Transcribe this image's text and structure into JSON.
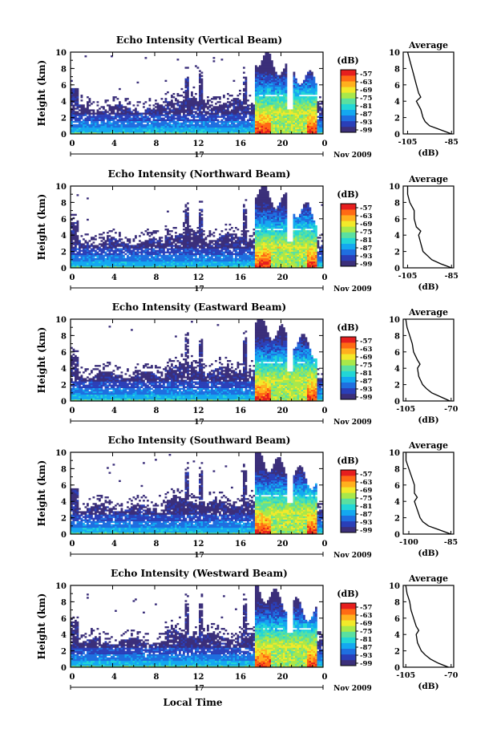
{
  "figure": {
    "xlabel": "Local Time",
    "date_label": "17",
    "month_label": "Nov 2009",
    "colorbar_unit": "(dB)",
    "profile_title": "Average",
    "profile_xlabel": "(dB)",
    "ylabel": "Height (km)"
  },
  "colors": {
    "colormap": [
      "#3b2f7a",
      "#2a3fb8",
      "#1f6fe0",
      "#14a8f0",
      "#22d6d6",
      "#5ae0a0",
      "#a8e84a",
      "#f2e92a",
      "#ffb01e",
      "#ff6a14",
      "#e61e1e"
    ],
    "no_data": "#ffffff",
    "axis": "#000000"
  },
  "chart_data": [
    {
      "type": "heatmap",
      "title": "Echo Intensity (Vertical Beam)",
      "ylabel": "Height (km)",
      "xlabel": "",
      "x_ticks": [
        "0",
        "4",
        "8",
        "12",
        "16",
        "20",
        "0"
      ],
      "y_ticks": [
        "0",
        "2",
        "4",
        "6",
        "8",
        "10"
      ],
      "xlim": [
        0,
        24
      ],
      "ylim": [
        0,
        10
      ],
      "colorbar": {
        "label": "(dB)",
        "ticks": [
          "-57",
          "-63",
          "-69",
          "-75",
          "-81",
          "-87",
          "-93",
          "-99"
        ]
      },
      "profile": {
        "title": "Average",
        "xlabel": "(dB)",
        "x_ticks": [
          "-105",
          "-85"
        ],
        "xlim": [
          -107,
          -84
        ],
        "y_ticks": [
          "0",
          "2",
          "4",
          "6",
          "8",
          "10"
        ],
        "heights": [
          0,
          0.5,
          1,
          1.5,
          2,
          3,
          4,
          4.5,
          5,
          6,
          7,
          8,
          9,
          10
        ],
        "values": [
          -85,
          -90,
          -95,
          -97,
          -98,
          -99,
          -101,
          -99,
          -100,
          -101,
          -102,
          -103,
          -104,
          -105
        ]
      }
    },
    {
      "type": "heatmap",
      "title": "Echo Intensity (Northward Beam)",
      "ylabel": "Height (km)",
      "xlabel": "",
      "x_ticks": [
        "0",
        "4",
        "8",
        "12",
        "16",
        "20",
        "0"
      ],
      "y_ticks": [
        "0",
        "2",
        "4",
        "6",
        "8",
        "10"
      ],
      "xlim": [
        0,
        24
      ],
      "ylim": [
        0,
        10
      ],
      "colorbar": {
        "label": "(dB)",
        "ticks": [
          "-57",
          "-63",
          "-69",
          "-75",
          "-81",
          "-87",
          "-93",
          "-99"
        ]
      },
      "profile": {
        "title": "Average",
        "xlabel": "(dB)",
        "x_ticks": [
          "-105",
          "-85"
        ],
        "xlim": [
          -107,
          -84
        ],
        "y_ticks": [
          "0",
          "2",
          "4",
          "6",
          "8",
          "10"
        ],
        "heights": [
          0,
          0.5,
          1,
          1.5,
          2,
          3,
          4,
          4.5,
          5,
          6,
          7,
          8,
          9,
          10
        ],
        "values": [
          -85,
          -90,
          -94,
          -96,
          -98,
          -99,
          -100,
          -99,
          -101,
          -102,
          -102,
          -104,
          -105,
          -105
        ]
      }
    },
    {
      "type": "heatmap",
      "title": "Echo Intensity (Eastward Beam)",
      "ylabel": "Height (km)",
      "xlabel": "",
      "x_ticks": [
        "0",
        "4",
        "8",
        "12",
        "16",
        "20",
        "0"
      ],
      "y_ticks": [
        "0",
        "2",
        "4",
        "6",
        "8",
        "10"
      ],
      "xlim": [
        0,
        24
      ],
      "ylim": [
        0,
        10
      ],
      "colorbar": {
        "label": "(dB)",
        "ticks": [
          "-57",
          "-63",
          "-69",
          "-75",
          "-81",
          "-87",
          "-93",
          "-99"
        ]
      },
      "profile": {
        "title": "Average",
        "xlabel": "(dB)",
        "x_ticks": [
          "-105",
          "-70"
        ],
        "xlim": [
          -107,
          -68
        ],
        "y_ticks": [
          "0",
          "2",
          "4",
          "6",
          "8",
          "10"
        ],
        "heights": [
          0,
          0.5,
          1,
          1.5,
          2,
          3,
          4,
          4.5,
          5,
          6,
          7,
          8,
          9,
          10
        ],
        "values": [
          -71,
          -78,
          -85,
          -89,
          -92,
          -95,
          -96,
          -94,
          -96,
          -99,
          -100,
          -102,
          -104,
          -105
        ]
      }
    },
    {
      "type": "heatmap",
      "title": "Echo Intensity (Southward Beam)",
      "ylabel": "Height (km)",
      "xlabel": "",
      "x_ticks": [
        "0",
        "4",
        "8",
        "12",
        "16",
        "20",
        "0"
      ],
      "y_ticks": [
        "0",
        "2",
        "4",
        "6",
        "8",
        "10"
      ],
      "xlim": [
        0,
        24
      ],
      "ylim": [
        0,
        10
      ],
      "colorbar": {
        "label": "(dB)",
        "ticks": [
          "-57",
          "-63",
          "-69",
          "-75",
          "-81",
          "-87",
          "-93",
          "-99"
        ]
      },
      "profile": {
        "title": "Average",
        "xlabel": "(dB)",
        "x_ticks": [
          "-100",
          "-85"
        ],
        "xlim": [
          -102,
          -84
        ],
        "y_ticks": [
          "0",
          "2",
          "4",
          "6",
          "8",
          "10"
        ],
        "heights": [
          0,
          0.5,
          1,
          1.5,
          2,
          3,
          4,
          4.5,
          5,
          6,
          7,
          8,
          9,
          10
        ],
        "values": [
          -85,
          -89,
          -93,
          -95,
          -96,
          -97,
          -98,
          -97,
          -98,
          -98,
          -99,
          -100,
          -101,
          -101
        ]
      }
    },
    {
      "type": "heatmap",
      "title": "Echo Intensity (Westward Beam)",
      "ylabel": "Height (km)",
      "xlabel": "Local Time",
      "x_ticks": [
        "0",
        "4",
        "8",
        "12",
        "16",
        "20",
        "0"
      ],
      "y_ticks": [
        "0",
        "2",
        "4",
        "6",
        "8",
        "10"
      ],
      "xlim": [
        0,
        24
      ],
      "ylim": [
        0,
        10
      ],
      "colorbar": {
        "label": "(dB)",
        "ticks": [
          "-57",
          "-63",
          "-69",
          "-75",
          "-81",
          "-87",
          "-93",
          "-99"
        ]
      },
      "profile": {
        "title": "Average",
        "xlabel": "(dB)",
        "x_ticks": [
          "-105",
          "-70"
        ],
        "xlim": [
          -107,
          -68
        ],
        "y_ticks": [
          "0",
          "2",
          "4",
          "6",
          "8",
          "10"
        ],
        "heights": [
          0,
          0.5,
          1,
          1.5,
          2,
          3,
          4,
          4.5,
          5,
          6,
          7,
          8,
          9,
          10
        ],
        "values": [
          -72,
          -80,
          -86,
          -90,
          -93,
          -96,
          -97,
          -95,
          -97,
          -99,
          -101,
          -102,
          -104,
          -105
        ]
      }
    }
  ]
}
